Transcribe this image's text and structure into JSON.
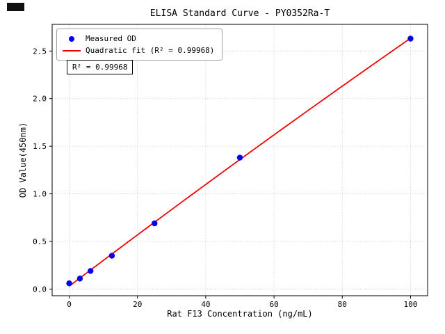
{
  "chart_data": {
    "type": "scatter",
    "title": "ELISA Standard Curve - PY0352Ra-T",
    "xlabel": "Rat F13 Concentration (ng/mL)",
    "ylabel": "OD Value(450nm)",
    "annotation": "R² = 0.99968",
    "r_squared": 0.99968,
    "series": [
      {
        "name": "Measured OD",
        "type": "scatter",
        "color": "#0000ee",
        "x": [
          0,
          3.125,
          6.25,
          12.5,
          25,
          50,
          100
        ],
        "y": [
          0.06,
          0.11,
          0.19,
          0.35,
          0.69,
          1.38,
          2.63
        ]
      },
      {
        "name": "Quadratic fit (R² = 0.99968)",
        "type": "quadratic-fit",
        "color": "#ee0000"
      }
    ],
    "xlim": [
      -5,
      105
    ],
    "ylim": [
      -0.07,
      2.78
    ],
    "xticks": [
      0,
      20,
      40,
      60,
      80,
      100
    ],
    "yticks": [
      0.0,
      0.5,
      1.0,
      1.5,
      2.0,
      2.5
    ],
    "grid": true,
    "grid_color": "#b8b8b8",
    "frame_color": "#000000",
    "legend_position": "upper left"
  }
}
